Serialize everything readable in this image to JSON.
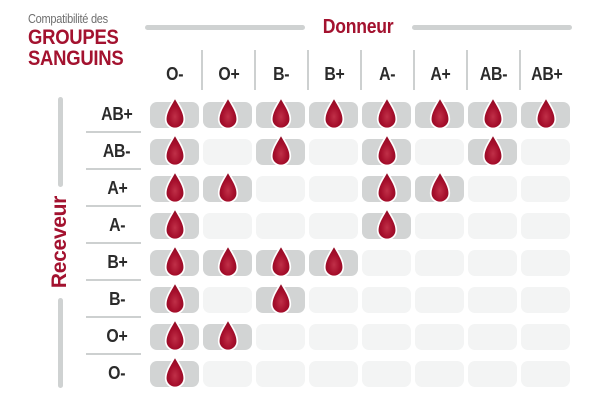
{
  "header": {
    "pretitle": "Compatibilité des",
    "title_line1": "GROUPES",
    "title_line2": "SANGUINS",
    "donor_label": "Donneur",
    "receiver_label": "Receveur"
  },
  "chart_data": {
    "type": "heatmap",
    "title": "Compatibilité des GROUPES SANGUINS",
    "x_axis_label": "Donneur",
    "y_axis_label": "Receveur",
    "columns": [
      "O-",
      "O+",
      "B-",
      "B+",
      "A-",
      "A+",
      "AB-",
      "AB+"
    ],
    "rows": [
      "AB+",
      "AB-",
      "A+",
      "A-",
      "B+",
      "B-",
      "O+",
      "O-"
    ],
    "values": [
      [
        1,
        1,
        1,
        1,
        1,
        1,
        1,
        1
      ],
      [
        1,
        0,
        1,
        0,
        1,
        0,
        1,
        0
      ],
      [
        1,
        1,
        0,
        0,
        1,
        1,
        0,
        0
      ],
      [
        1,
        0,
        0,
        0,
        1,
        0,
        0,
        0
      ],
      [
        1,
        1,
        1,
        1,
        0,
        0,
        0,
        0
      ],
      [
        1,
        0,
        1,
        0,
        0,
        0,
        0,
        0
      ],
      [
        1,
        1,
        0,
        0,
        0,
        0,
        0,
        0
      ],
      [
        1,
        0,
        0,
        0,
        0,
        0,
        0,
        0
      ]
    ],
    "cell_glyph": "blood-drop",
    "notes": "1 = blood drop shown (compatible), 0 = empty cell (not compatible)"
  },
  "colors": {
    "accent_red": "#a3122f",
    "drop_red": "#a60f2c",
    "drop_highlight": "#c03048",
    "drop_shadow": "#8f0a23",
    "filled_cell_bg": "#d2d4d4",
    "empty_cell_bg": "#f3f4f4",
    "separator_gray": "#cdd0d0",
    "decorative_bar_gray": "#cfd2d2",
    "header_text": "#2b2b2b",
    "pretitle_gray": "#6f6f6f"
  }
}
